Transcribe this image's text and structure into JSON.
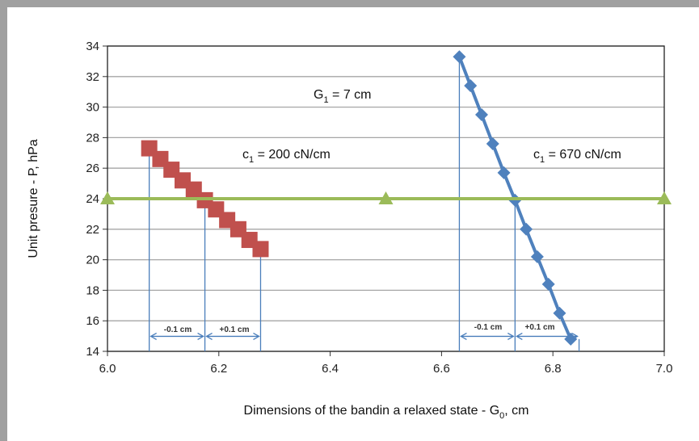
{
  "chart_data": {
    "type": "scatter",
    "xlabel": "Dimensions of the bandin a relaxed state - G",
    "xlabel_sub": "0",
    "xlabel_suffix": ", cm",
    "ylabel": "Unit presure - P, hPa",
    "xlim": [
      6.0,
      7.0
    ],
    "ylim": [
      14,
      34
    ],
    "xticks": [
      6.0,
      6.2,
      6.4,
      6.6,
      6.8,
      7.0
    ],
    "xtick_labels": [
      "6.0",
      "6.2",
      "6.4",
      "6.6",
      "6.8",
      "7.0"
    ],
    "yticks": [
      14,
      16,
      18,
      20,
      22,
      24,
      26,
      28,
      30,
      32,
      34
    ],
    "ytick_labels": [
      "14",
      "16",
      "18",
      "20",
      "22",
      "24",
      "26",
      "28",
      "30",
      "32",
      "34"
    ],
    "grid": "horizontal",
    "series": [
      {
        "marker": "square",
        "color": "#c0504d",
        "x": [
          6.075,
          6.095,
          6.115,
          6.135,
          6.155,
          6.175,
          6.195,
          6.215,
          6.235,
          6.255,
          6.275
        ],
        "y": [
          27.3,
          26.6,
          25.9,
          25.2,
          24.6,
          23.9,
          23.3,
          22.6,
          22.0,
          21.3,
          20.7
        ]
      },
      {
        "marker": "diamond",
        "color": "#4f81bd",
        "x": [
          6.632,
          6.652,
          6.672,
          6.692,
          6.712,
          6.732,
          6.752,
          6.772,
          6.792,
          6.812,
          6.832
        ],
        "y": [
          33.3,
          31.4,
          29.5,
          27.6,
          25.7,
          23.9,
          22.0,
          20.2,
          18.4,
          16.5,
          14.8
        ]
      },
      {
        "marker": "triangle",
        "color": "#9bbb59",
        "x": [
          6.0,
          6.5,
          7.0
        ],
        "y": [
          24,
          24,
          24
        ]
      }
    ],
    "annotations": {
      "g1": {
        "text": "G",
        "sub": "1",
        "suffix": " = 7 cm"
      },
      "c1_left": {
        "text": "c",
        "sub": "1",
        "suffix": " = 200 cN/cm"
      },
      "c1_right": {
        "text": "c",
        "sub": "1",
        "suffix": " = 670 cN/cm"
      },
      "tol_minus_left": "-0.1 cm",
      "tol_plus_left": "+0.1 cm",
      "tol_minus_right": "-0.1 cm",
      "tol_plus_right": "+0.1 cm"
    },
    "reference_lines": {
      "left": [
        6.075,
        6.175,
        6.275
      ],
      "right": [
        6.632,
        6.732,
        6.847
      ],
      "left_bracket_y": 15.3,
      "right_bracket_y": 15.3
    },
    "line_color": "#4a7ebb"
  }
}
